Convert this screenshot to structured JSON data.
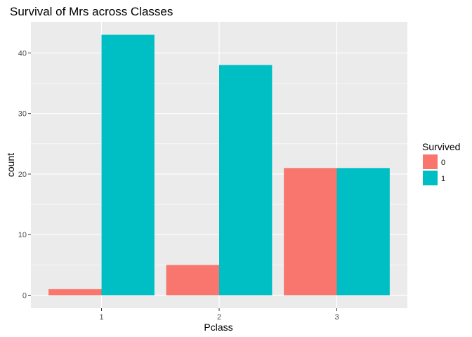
{
  "chart_data": {
    "type": "bar",
    "title": "Survival of Mrs across Classes",
    "xlabel": "Pclass",
    "ylabel": "count",
    "categories": [
      "1",
      "2",
      "3"
    ],
    "series": [
      {
        "name": "0",
        "values": [
          1,
          5,
          21
        ],
        "color": "#F8766D"
      },
      {
        "name": "1",
        "values": [
          43,
          38,
          21
        ],
        "color": "#00BFC4"
      }
    ],
    "ylim": [
      -2.15,
      45.15
    ],
    "yticks": [
      0,
      10,
      20,
      30,
      40
    ],
    "legend": {
      "title": "Survived",
      "position": "right"
    },
    "grid": true,
    "panel_color": "#EBEBEB"
  }
}
